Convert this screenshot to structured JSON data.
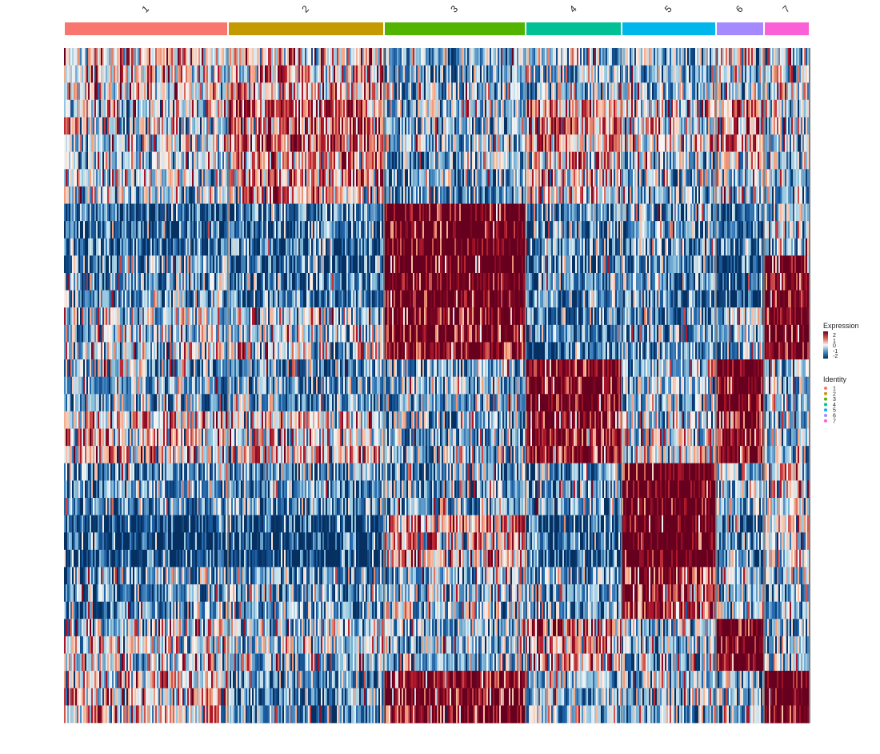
{
  "chart_data": {
    "type": "heatmap",
    "title": "",
    "xlabel": "",
    "ylabel": "",
    "clusters": [
      {
        "label": "1",
        "color": "#F8766D",
        "profile": [
          0.2,
          -0.1,
          -0.3,
          -1.4,
          -0.9,
          -0.3,
          -0.7,
          0.3,
          -0.9,
          -1.7,
          -0.8,
          -0.1,
          0.2
        ]
      },
      {
        "label": "2",
        "color": "#C49A00",
        "profile": [
          0.3,
          0.9,
          0.6,
          -1.3,
          -1.4,
          -0.2,
          -0.9,
          0.2,
          -0.9,
          -1.9,
          -0.8,
          -0.4,
          -1.0
        ]
      },
      {
        "label": "3",
        "color": "#53B400",
        "profile": [
          -0.7,
          -0.6,
          -0.8,
          2.2,
          2.2,
          1.9,
          -0.8,
          -0.7,
          -0.8,
          0.5,
          -0.5,
          -0.5,
          1.8
        ]
      },
      {
        "label": "4",
        "color": "#00C094",
        "profile": [
          -0.5,
          0.6,
          0.3,
          -1.0,
          -1.1,
          -1.3,
          1.8,
          1.5,
          -0.8,
          -1.4,
          -0.8,
          0.5,
          -0.6
        ]
      },
      {
        "label": "5",
        "color": "#00B6EB",
        "profile": [
          -0.6,
          0.1,
          -0.6,
          -0.8,
          -1.0,
          -1.0,
          -0.6,
          -0.3,
          2.2,
          2.3,
          1.3,
          -0.6,
          -0.6
        ]
      },
      {
        "label": "6",
        "color": "#A58AFF",
        "profile": [
          -0.3,
          0.9,
          -0.1,
          -1.3,
          -1.8,
          -0.8,
          2.2,
          1.6,
          -0.4,
          -1.0,
          -0.4,
          2.2,
          -0.6
        ]
      },
      {
        "label": "7",
        "color": "#FB61D7",
        "profile": [
          -0.2,
          -0.4,
          -0.5,
          -0.5,
          1.8,
          2.3,
          -0.6,
          -0.6,
          0.0,
          0.0,
          -0.6,
          -0.7,
          2.3
        ]
      }
    ],
    "color_scale": {
      "low": "#053061",
      "mid": "#F7F7F7",
      "high": "#67001F",
      "min": -2,
      "max": 2
    },
    "legend": {
      "expression_title": "Expression",
      "expression_ticks": [
        "2",
        "1",
        "0",
        "-1",
        "-2"
      ],
      "identity_title": "Identity",
      "identity_labels": [
        "1",
        "2",
        "3",
        "4",
        "5",
        "6",
        "7"
      ],
      "position": "right"
    },
    "grid": false
  }
}
